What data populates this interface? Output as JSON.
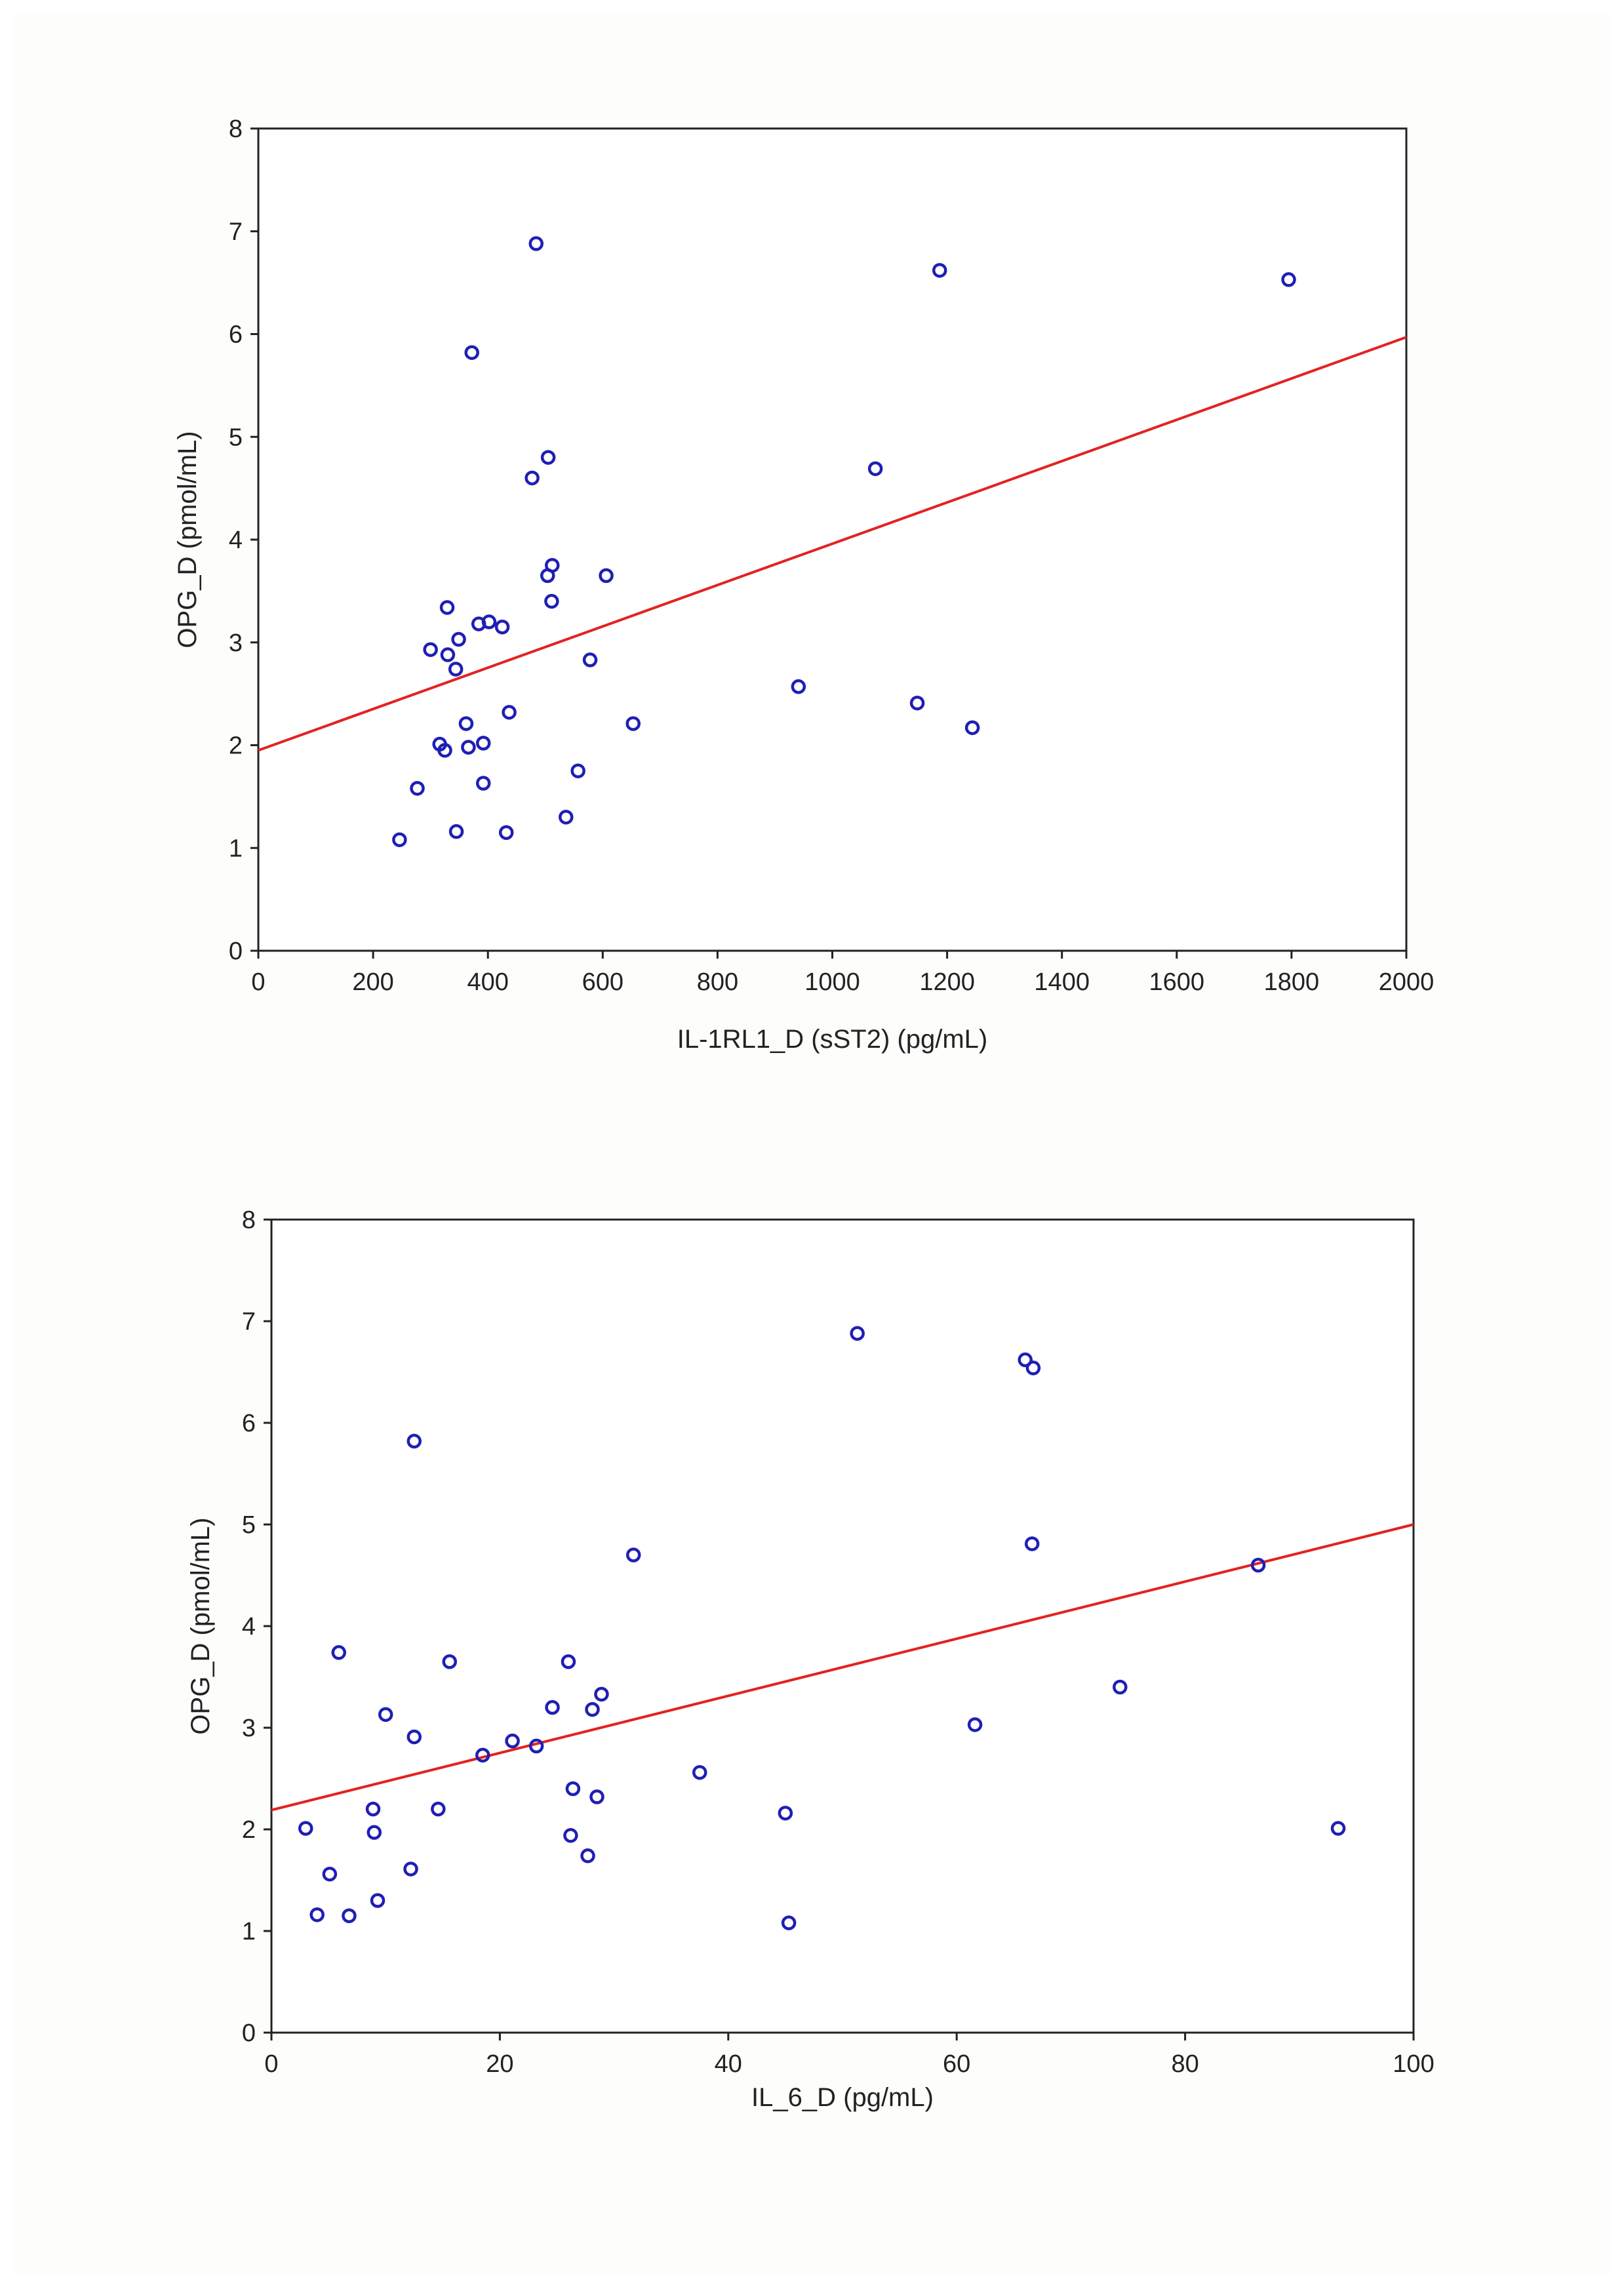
{
  "colors": {
    "points": "#1f1fb4",
    "fit_line": "#e32222"
  },
  "chart_data": [
    {
      "type": "scatter",
      "title": "",
      "xlabel": "IL-1RL1_D (sST2) (pg/mL)",
      "ylabel": "OPG_D (pmol/mL)",
      "xlim": [
        0,
        2000
      ],
      "ylim": [
        0,
        8
      ],
      "xticks": [
        0,
        200,
        400,
        600,
        800,
        1000,
        1200,
        1400,
        1600,
        1800,
        2000
      ],
      "yticks": [
        0,
        1,
        2,
        3,
        4,
        5,
        6,
        7,
        8
      ],
      "grid": true,
      "x": [
        484,
        1187,
        1795,
        372,
        505,
        477,
        1075,
        512,
        504,
        606,
        329,
        511,
        402,
        384,
        425,
        349,
        300,
        330,
        344,
        578,
        941,
        1148,
        1244,
        437,
        362,
        653,
        316,
        392,
        366,
        325,
        557,
        277,
        392,
        536,
        345,
        432,
        246
      ],
      "y": [
        6.88,
        6.62,
        6.53,
        5.82,
        4.8,
        4.6,
        4.69,
        3.75,
        3.65,
        3.65,
        3.34,
        3.4,
        3.2,
        3.18,
        3.15,
        3.03,
        2.93,
        2.88,
        2.74,
        2.83,
        2.57,
        2.41,
        2.17,
        2.32,
        2.21,
        2.21,
        2.01,
        2.02,
        1.98,
        1.95,
        1.75,
        1.58,
        1.63,
        1.3,
        1.16,
        1.15,
        1.08
      ],
      "fit_line": {
        "x": [
          0,
          2000
        ],
        "y": [
          1.95,
          5.97
        ]
      }
    },
    {
      "type": "scatter",
      "title": "",
      "xlabel": "IL_6_D (pg/mL)",
      "ylabel": "OPG_D (pmol/mL)",
      "xlim": [
        0,
        100
      ],
      "ylim": [
        0,
        8
      ],
      "xticks": [
        0,
        20,
        40,
        60,
        80,
        100
      ],
      "yticks": [
        0,
        1,
        2,
        3,
        4,
        5,
        6,
        7,
        8
      ],
      "grid": true,
      "x": [
        51.3,
        66.0,
        66.7,
        12.5,
        66.6,
        86.4,
        31.7,
        5.9,
        15.6,
        26.0,
        28.9,
        24.6,
        28.1,
        10.0,
        12.5,
        21.1,
        18.5,
        23.2,
        61.6,
        74.3,
        37.5,
        26.4,
        28.5,
        45.0,
        8.9,
        14.6,
        3.0,
        9.0,
        26.2,
        27.7,
        5.1,
        12.2,
        9.3,
        93.4,
        4.0,
        6.8,
        45.3
      ],
      "y": [
        6.88,
        6.62,
        6.54,
        5.82,
        4.81,
        4.6,
        4.7,
        3.74,
        3.65,
        3.65,
        3.33,
        3.2,
        3.18,
        3.13,
        2.91,
        2.87,
        2.73,
        2.82,
        3.03,
        3.4,
        2.56,
        2.4,
        2.32,
        2.16,
        2.2,
        2.2,
        2.01,
        1.97,
        1.94,
        1.74,
        1.56,
        1.61,
        1.3,
        2.01,
        1.16,
        1.15,
        1.08
      ],
      "fit_line": {
        "x": [
          0,
          100
        ],
        "y": [
          2.19,
          5.0
        ]
      }
    }
  ]
}
